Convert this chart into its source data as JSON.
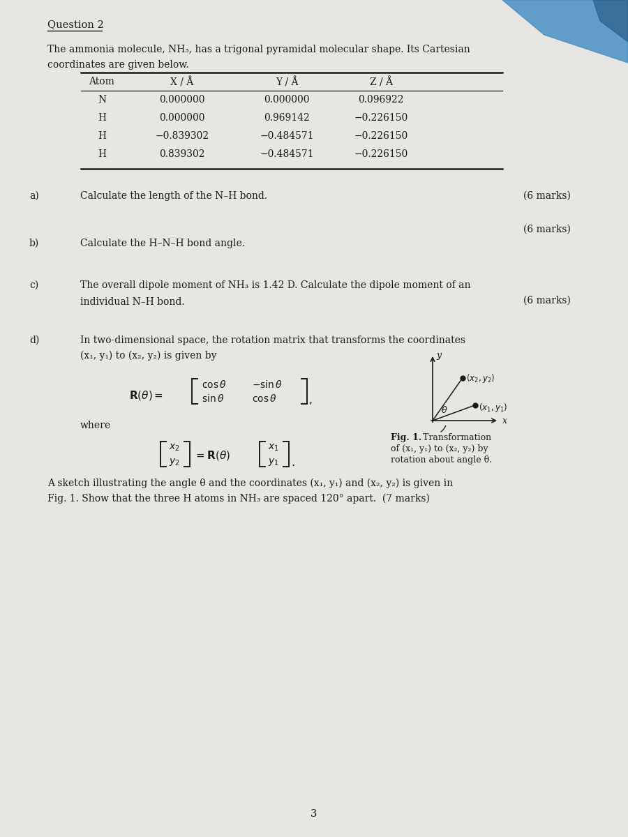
{
  "title": "Question 2",
  "bg_color": "#e8e6e2",
  "paper_color": "#f0eeea",
  "text_color": "#1a1a1a",
  "intro_line1": "The ammonia molecule, NH₃, has a trigonal pyramidal molecular shape. Its Cartesian",
  "intro_line2": "coordinates are given below.",
  "table_headers": [
    "Atom",
    "X / Å",
    "Y / Å",
    "Z / Å"
  ],
  "table_rows": [
    [
      "N",
      "0.000000",
      "0.000000",
      "0.096922"
    ],
    [
      "H",
      "0.000000",
      "0.969142",
      "−0.226150"
    ],
    [
      "H",
      "−0.839302",
      "−0.484571",
      "−0.226150"
    ],
    [
      "H",
      "0.839302",
      "−0.484571",
      "−0.226150"
    ]
  ],
  "part_a_label": "a)",
  "part_a_text": "Calculate the length of the N–H bond.",
  "part_a_marks": "(6 marks)",
  "part_b_label": "b)",
  "part_b_text": "Calculate the H–N–H bond angle.",
  "part_b_marks": "(6 marks)",
  "part_c_label": "c)",
  "part_c_line1": "The overall dipole moment of NH₃ is 1.42 D. Calculate the dipole moment of an",
  "part_c_line2": "individual N–H bond.",
  "part_c_marks": "(6 marks)",
  "part_d_label": "d)",
  "part_d_line1": "In two-dimensional space, the rotation matrix that transforms the coordinates",
  "part_d_line2": "(x₁, y₁) to (x₂, y₂) is given by",
  "part_d_where": "where",
  "fig1_bold": "Fig. 1.",
  "fig1_text1": "  Transformation",
  "fig1_text2": "of (x₁, y₁) to (x₂, y₂) by",
  "fig1_text3": "rotation about angle θ.",
  "part_d_final_line1": "A sketch illustrating the angle θ and the coordinates (x₁, y₁) and (x₂, y₂) is given in",
  "part_d_final_line2": "Fig. 1. Show that the three H atoms in NH₃ are spaced 120° apart.  (7 marks)",
  "page_number": "3",
  "blue_corner_color": "#4a90c4"
}
